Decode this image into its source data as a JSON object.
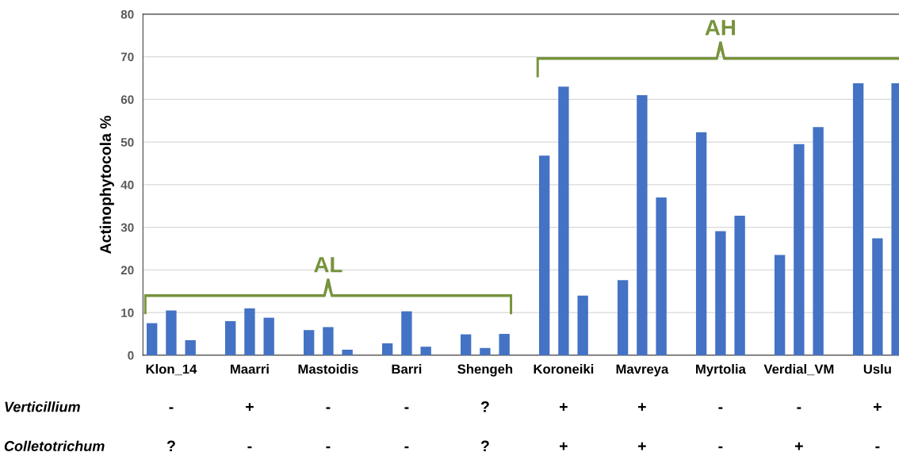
{
  "chart_data": {
    "type": "bar",
    "ylabel": "Actinophytocola %",
    "categories": [
      "Klon_14",
      "Maarri",
      "Mastoidis",
      "Barri",
      "Shengeh",
      "Koroneiki",
      "Mavreya",
      "Myrtolia",
      "Verdial_VM",
      "Uslu"
    ],
    "series": [
      {
        "color": "#4472c4",
        "values": [
          7.5,
          8,
          5.9,
          2.8,
          4.9,
          46.8,
          17.6,
          52.3,
          23.5,
          63.8
        ]
      },
      {
        "color": "#4472c4",
        "values": [
          10.5,
          11,
          6.6,
          10.3,
          1.7,
          63,
          61,
          29.1,
          49.5,
          27.4
        ]
      },
      {
        "color": "#4472c4",
        "values": [
          3.5,
          8.8,
          1.3,
          2,
          5,
          14,
          37,
          32.7,
          53.5,
          63.8
        ]
      }
    ],
    "ylim": [
      0,
      80
    ],
    "yticks": [
      0,
      10,
      20,
      30,
      40,
      50,
      60,
      70,
      80
    ],
    "grid": "y",
    "legend": false,
    "annotations": [
      "AL",
      "AH",
      "Verticillium",
      "-",
      "+",
      "-",
      "-",
      "?",
      "+",
      "+",
      "-",
      "-",
      "+",
      "Colletotrichum",
      "?",
      "-",
      "-",
      "-",
      "?",
      "+",
      "+",
      "-",
      "+",
      "-"
    ]
  }
}
